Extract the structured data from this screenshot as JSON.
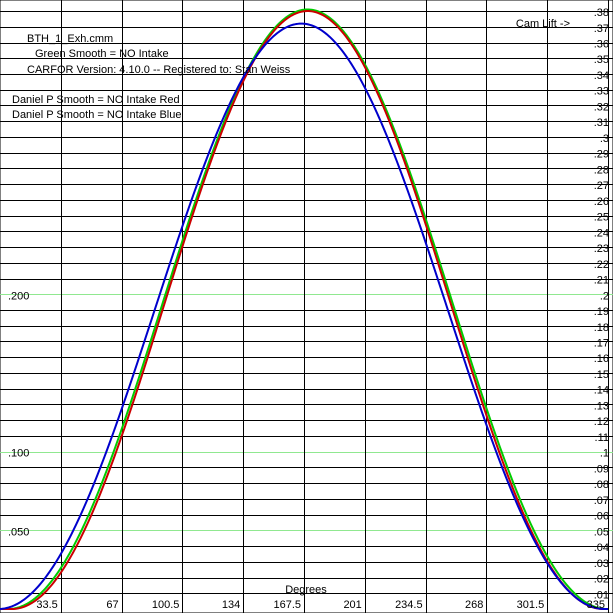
{
  "chart_data": {
    "type": "line",
    "x_axis": {
      "label": "Degrees",
      "range": [
        0,
        335
      ],
      "ticks": [
        33.5,
        67,
        100.5,
        134,
        167.5,
        201,
        234.5,
        268,
        301.5,
        335
      ],
      "tick_labels": [
        "33.5",
        "67",
        "100.5",
        "134",
        "167.5",
        "201",
        "234.5",
        "268",
        "301.5",
        "335"
      ]
    },
    "y_axis": {
      "range": [
        0,
        0.38
      ],
      "right_ticks": [
        0.38,
        0.37,
        0.36,
        0.35,
        0.34,
        0.33,
        0.32,
        0.31,
        0.3,
        0.29,
        0.28,
        0.27,
        0.26,
        0.25,
        0.24,
        0.23,
        0.22,
        0.21,
        0.2,
        0.19,
        0.18,
        0.17,
        0.16,
        0.15,
        0.14,
        0.13,
        0.12,
        0.11,
        0.1,
        0.09,
        0.08,
        0.07,
        0.06,
        0.05,
        0.04,
        0.03,
        0.02,
        0.01
      ],
      "right_tick_labels": [
        ".38",
        ".37",
        ".36",
        ".35",
        ".34",
        ".33",
        ".32",
        ".31",
        ".3",
        ".29",
        ".28",
        ".27",
        ".26",
        ".25",
        ".24",
        ".23",
        ".22",
        ".21",
        ".2",
        ".19",
        ".18",
        ".17",
        ".16",
        ".15",
        ".14",
        ".13",
        ".12",
        ".11",
        ".1",
        ".09",
        ".08",
        ".07",
        ".06",
        ".05",
        ".04",
        ".03",
        ".02",
        ".01"
      ],
      "left_ticks": [
        0.2,
        0.1,
        0.05
      ],
      "left_tick_labels": [
        ".200",
        ".100",
        ".050"
      ],
      "right_label": "Cam Lift ->"
    },
    "header_lines": [
      "BTH_1_Exh.cmm",
      "Green  Smooth = NO    Intake",
      "CARFOR Version: 4.10.0 -- Registered to:   Stan Weiss",
      "Daniel P  Smooth = NO  Intake  Red",
      "Daniel P  Smooth = NO  Intake  Blue"
    ],
    "grid": true,
    "series": [
      {
        "color": "#00cc00",
        "center": 169.5,
        "peak": 0.381,
        "half_width": 165
      },
      {
        "color": "#cc0000",
        "center": 169.5,
        "peak": 0.38,
        "half_width": 163
      },
      {
        "color": "#0000cc",
        "center": 166.0,
        "peak": 0.372,
        "half_width": 167
      }
    ]
  }
}
